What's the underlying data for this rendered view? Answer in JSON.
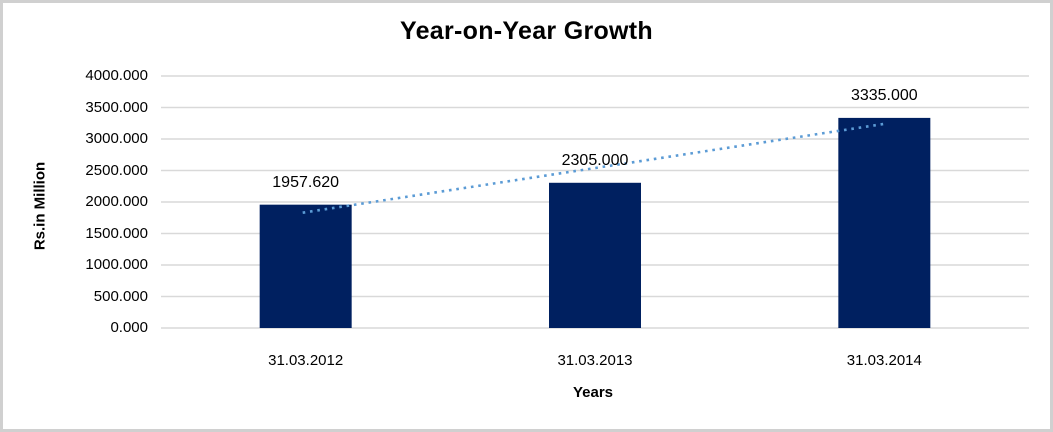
{
  "chart": {
    "title": "Year-on-Year Growth",
    "y_axis_title": "Rs.in Million",
    "x_axis_title": "Years"
  },
  "chart_data": {
    "type": "bar",
    "title": "Year-on-Year Growth",
    "xlabel": "Years",
    "ylabel": "Rs.in Million",
    "categories": [
      "31.03.2012",
      "31.03.2013",
      "31.03.2014"
    ],
    "values": [
      1957.62,
      2305.0,
      3335.0
    ],
    "data_labels": [
      "1957.620",
      "2305.000",
      "3335.000"
    ],
    "ylim": [
      0,
      4000
    ],
    "y_tick_step": 500,
    "y_tick_labels": [
      "0.000",
      "500.000",
      "1000.000",
      "1500.000",
      "2000.000",
      "2500.000",
      "3000.000",
      "3500.000",
      "4000.000"
    ],
    "grid": true,
    "legend": "none",
    "trendline": {
      "type": "linear",
      "style": "dotted"
    },
    "colors": {
      "bar": "#002060",
      "gridline": "#d9d9d9",
      "trendline": "#5b9bd5",
      "text": "#000000",
      "frame_border": "#d0d0d0",
      "background": "#ffffff"
    }
  }
}
